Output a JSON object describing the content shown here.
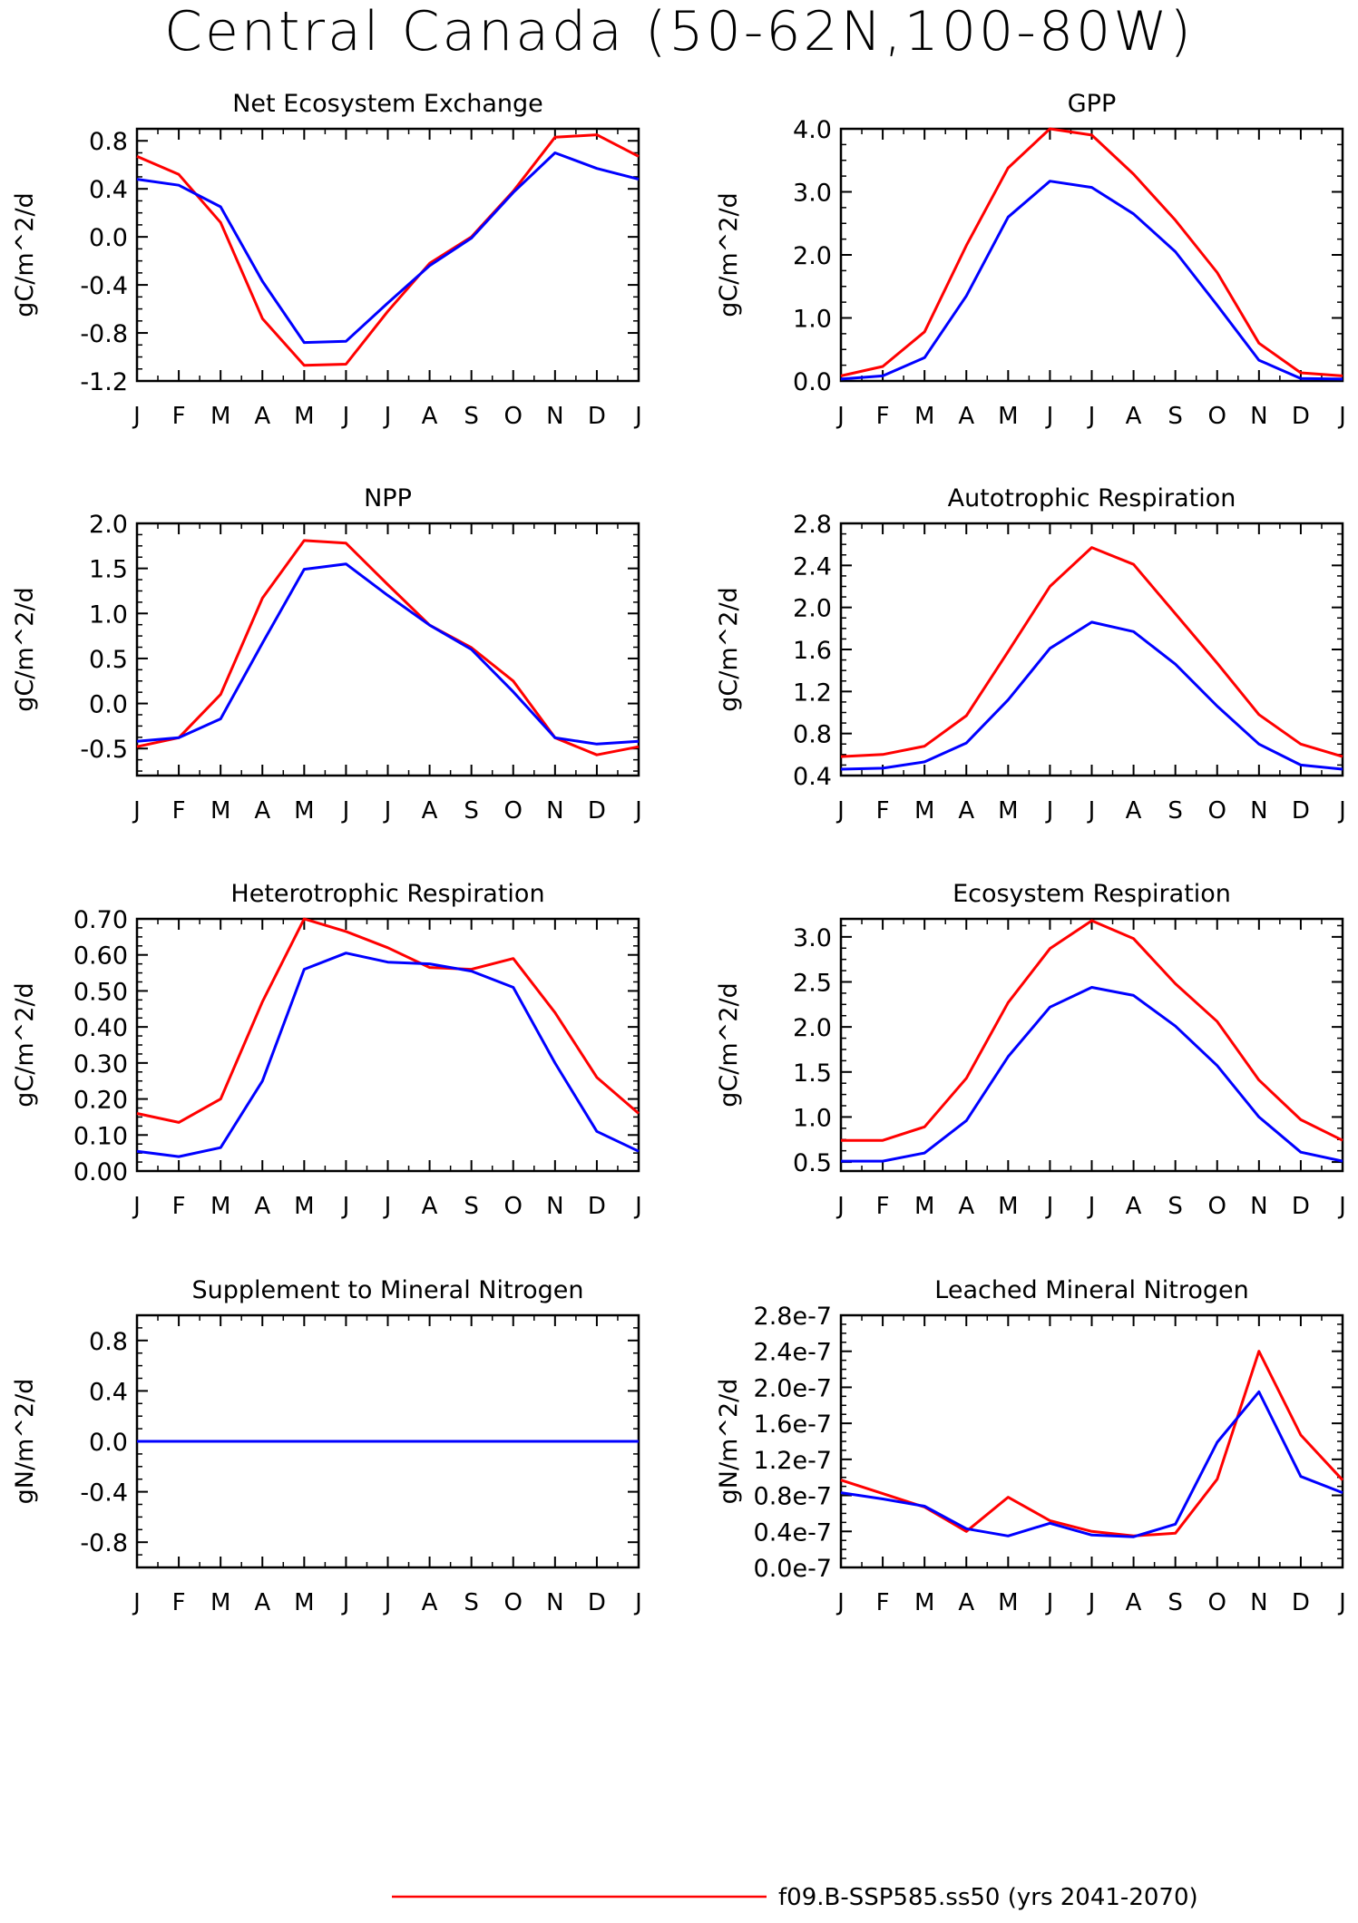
{
  "page_title": "Central Canada (50-62N,100-80W)",
  "months": [
    "J",
    "F",
    "M",
    "A",
    "M",
    "J",
    "J",
    "A",
    "S",
    "O",
    "N",
    "D",
    "J"
  ],
  "colors": {
    "run1": "#ff0000",
    "run2": "#0000ff"
  },
  "legend": [
    {
      "label": "f09.B-SSP585.ss50 (yrs 2041-2070)",
      "color": "#ff0000"
    }
  ],
  "chart_data": [
    {
      "type": "line",
      "title": "Net Ecosystem Exchange",
      "ylabel": "gC/m^2/d",
      "ylim": [
        -1.2,
        0.9
      ],
      "yticks": [
        -1.2,
        -0.8,
        -0.4,
        0.0,
        0.4,
        0.8
      ],
      "ytick_labels": [
        "-1.2",
        "-0.8",
        "-0.4",
        "0.0",
        "0.4",
        "0.8"
      ],
      "x": [
        "J",
        "F",
        "M",
        "A",
        "M",
        "J",
        "J",
        "A",
        "S",
        "O",
        "N",
        "D",
        "J"
      ],
      "series": [
        {
          "color": "#ff0000",
          "values": [
            0.67,
            0.52,
            0.12,
            -0.68,
            -1.07,
            -1.06,
            -0.62,
            -0.22,
            0.0,
            0.38,
            0.83,
            0.85,
            0.67
          ]
        },
        {
          "color": "#0000ff",
          "values": [
            0.48,
            0.43,
            0.25,
            -0.37,
            -0.88,
            -0.87,
            -0.55,
            -0.24,
            -0.01,
            0.37,
            0.7,
            0.57,
            0.48
          ]
        }
      ]
    },
    {
      "type": "line",
      "title": "GPP",
      "ylabel": "gC/m^2/d",
      "ylim": [
        0.0,
        4.0
      ],
      "yticks": [
        0.0,
        1.0,
        2.0,
        3.0,
        4.0
      ],
      "ytick_labels": [
        "0.0",
        "1.0",
        "2.0",
        "3.0",
        "4.0"
      ],
      "x": [
        "J",
        "F",
        "M",
        "A",
        "M",
        "J",
        "J",
        "A",
        "S",
        "O",
        "N",
        "D",
        "J"
      ],
      "series": [
        {
          "color": "#ff0000",
          "values": [
            0.08,
            0.23,
            0.78,
            2.15,
            3.38,
            4.0,
            3.9,
            3.28,
            2.55,
            1.72,
            0.6,
            0.13,
            0.08
          ]
        },
        {
          "color": "#0000ff",
          "values": [
            0.03,
            0.08,
            0.37,
            1.35,
            2.6,
            3.17,
            3.07,
            2.65,
            2.05,
            1.2,
            0.33,
            0.04,
            0.03
          ]
        }
      ]
    },
    {
      "type": "line",
      "title": "NPP",
      "ylabel": "gC/m^2/d",
      "ylim": [
        -0.8,
        2.0
      ],
      "yticks": [
        -0.5,
        0.0,
        0.5,
        1.0,
        1.5,
        2.0
      ],
      "ytick_labels": [
        "-0.5",
        "0.0",
        "0.5",
        "1.0",
        "1.5",
        "2.0"
      ],
      "x": [
        "J",
        "F",
        "M",
        "A",
        "M",
        "J",
        "J",
        "A",
        "S",
        "O",
        "N",
        "D",
        "J"
      ],
      "series": [
        {
          "color": "#ff0000",
          "values": [
            -0.48,
            -0.38,
            0.1,
            1.17,
            1.81,
            1.78,
            1.32,
            0.87,
            0.62,
            0.25,
            -0.38,
            -0.57,
            -0.48
          ]
        },
        {
          "color": "#0000ff",
          "values": [
            -0.42,
            -0.38,
            -0.17,
            0.67,
            1.49,
            1.55,
            1.2,
            0.87,
            0.6,
            0.13,
            -0.38,
            -0.45,
            -0.42
          ]
        }
      ]
    },
    {
      "type": "line",
      "title": "Autotrophic Respiration",
      "ylabel": "gC/m^2/d",
      "ylim": [
        0.4,
        2.8
      ],
      "yticks": [
        0.4,
        0.8,
        1.2,
        1.6,
        2.0,
        2.4,
        2.8
      ],
      "ytick_labels": [
        "0.4",
        "0.8",
        "1.2",
        "1.6",
        "2.0",
        "2.4",
        "2.8"
      ],
      "x": [
        "J",
        "F",
        "M",
        "A",
        "M",
        "J",
        "J",
        "A",
        "S",
        "O",
        "N",
        "D",
        "J"
      ],
      "series": [
        {
          "color": "#ff0000",
          "values": [
            0.58,
            0.6,
            0.68,
            0.97,
            1.58,
            2.2,
            2.57,
            2.41,
            1.94,
            1.47,
            0.98,
            0.7,
            0.58
          ]
        },
        {
          "color": "#0000ff",
          "values": [
            0.46,
            0.47,
            0.53,
            0.71,
            1.12,
            1.61,
            1.86,
            1.77,
            1.46,
            1.06,
            0.7,
            0.5,
            0.46
          ]
        }
      ]
    },
    {
      "type": "line",
      "title": "Heterotrophic Respiration",
      "ylabel": "gC/m^2/d",
      "ylim": [
        0.0,
        0.7
      ],
      "yticks": [
        0.0,
        0.1,
        0.2,
        0.3,
        0.4,
        0.5,
        0.6,
        0.7
      ],
      "ytick_labels": [
        "0.00",
        "0.10",
        "0.20",
        "0.30",
        "0.40",
        "0.50",
        "0.60",
        "0.70"
      ],
      "x": [
        "J",
        "F",
        "M",
        "A",
        "M",
        "J",
        "J",
        "A",
        "S",
        "O",
        "N",
        "D",
        "J"
      ],
      "series": [
        {
          "color": "#ff0000",
          "values": [
            0.16,
            0.135,
            0.2,
            0.47,
            0.7,
            0.665,
            0.62,
            0.565,
            0.56,
            0.59,
            0.44,
            0.26,
            0.16
          ]
        },
        {
          "color": "#0000ff",
          "values": [
            0.055,
            0.04,
            0.065,
            0.25,
            0.56,
            0.605,
            0.58,
            0.575,
            0.555,
            0.51,
            0.3,
            0.11,
            0.055
          ]
        }
      ]
    },
    {
      "type": "line",
      "title": "Ecosystem Respiration",
      "ylabel": "gC/m^2/d",
      "ylim": [
        0.4,
        3.2
      ],
      "yticks": [
        0.5,
        1.0,
        1.5,
        2.0,
        2.5,
        3.0
      ],
      "ytick_labels": [
        "0.5",
        "1.0",
        "1.5",
        "2.0",
        "2.5",
        "3.0"
      ],
      "x": [
        "J",
        "F",
        "M",
        "A",
        "M",
        "J",
        "J",
        "A",
        "S",
        "O",
        "N",
        "D",
        "J"
      ],
      "series": [
        {
          "color": "#ff0000",
          "values": [
            0.74,
            0.74,
            0.89,
            1.43,
            2.27,
            2.87,
            3.18,
            2.98,
            2.48,
            2.06,
            1.41,
            0.97,
            0.74
          ]
        },
        {
          "color": "#0000ff",
          "values": [
            0.51,
            0.51,
            0.6,
            0.96,
            1.67,
            2.22,
            2.44,
            2.35,
            2.01,
            1.57,
            1.0,
            0.61,
            0.51
          ]
        }
      ]
    },
    {
      "type": "line",
      "title": "Supplement to Mineral Nitrogen",
      "ylabel": "gN/m^2/d",
      "ylim": [
        -1.0,
        1.0
      ],
      "yticks": [
        -0.8,
        -0.4,
        0.0,
        0.4,
        0.8
      ],
      "ytick_labels": [
        "-0.8",
        "-0.4",
        "0.0",
        "0.4",
        "0.8"
      ],
      "x": [
        "J",
        "F",
        "M",
        "A",
        "M",
        "J",
        "J",
        "A",
        "S",
        "O",
        "N",
        "D",
        "J"
      ],
      "series": [
        {
          "color": "#ff0000",
          "values": [
            0,
            0,
            0,
            0,
            0,
            0,
            0,
            0,
            0,
            0,
            0,
            0,
            0
          ]
        },
        {
          "color": "#0000ff",
          "values": [
            0,
            0,
            0,
            0,
            0,
            0,
            0,
            0,
            0,
            0,
            0,
            0,
            0
          ]
        }
      ]
    },
    {
      "type": "line",
      "title": "Leached Mineral Nitrogen",
      "ylabel": "gN/m^2/d",
      "ylim": [
        0.0,
        2.8e-07
      ],
      "yticks": [
        0.0,
        4e-08,
        8e-08,
        1.2e-07,
        1.6e-07,
        2e-07,
        2.4e-07,
        2.8e-07
      ],
      "ytick_labels": [
        "0.0e-7",
        "0.4e-7",
        "0.8e-7",
        "1.2e-7",
        "1.6e-7",
        "2.0e-7",
        "2.4e-7",
        "2.8e-7"
      ],
      "x": [
        "J",
        "F",
        "M",
        "A",
        "M",
        "J",
        "J",
        "A",
        "S",
        "O",
        "N",
        "D",
        "J"
      ],
      "series": [
        {
          "color": "#ff0000",
          "values": [
            9.7e-08,
            8.2e-08,
            6.7e-08,
            4e-08,
            7.8e-08,
            5.2e-08,
            4e-08,
            3.5e-08,
            3.8e-08,
            9.8e-08,
            2.4e-07,
            1.47e-07,
            9.7e-08
          ]
        },
        {
          "color": "#0000ff",
          "values": [
            8.3e-08,
            7.6e-08,
            6.8e-08,
            4.3e-08,
            3.5e-08,
            4.9e-08,
            3.6e-08,
            3.4e-08,
            4.8e-08,
            1.39e-07,
            1.95e-07,
            1.01e-07,
            8.3e-08
          ]
        }
      ]
    }
  ]
}
